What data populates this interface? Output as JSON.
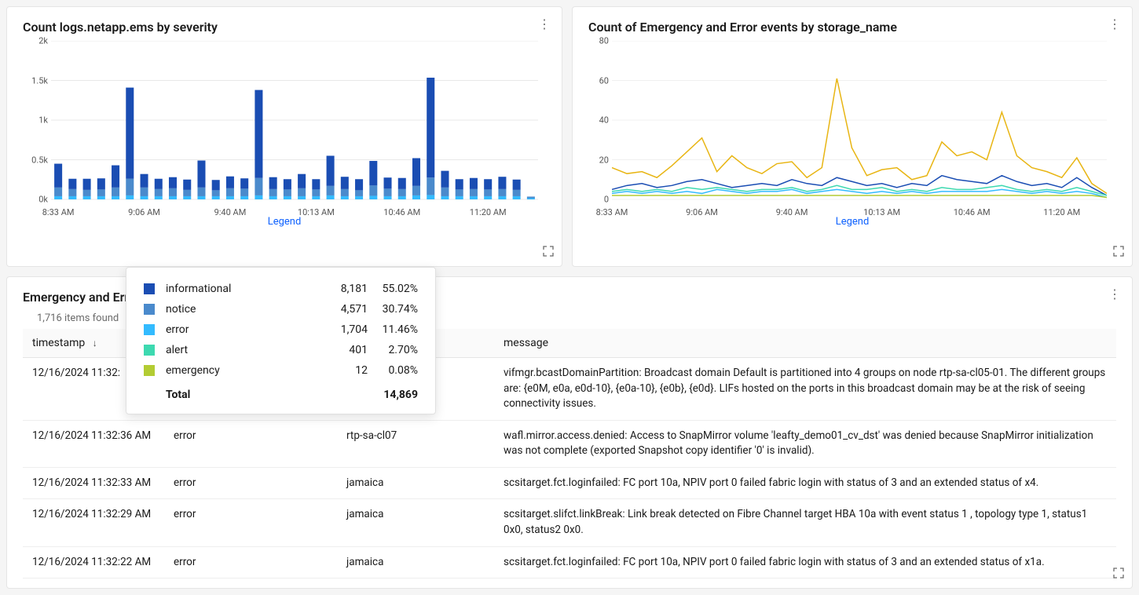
{
  "barPanel": {
    "title": "Count logs.netapp.ems by severity",
    "legendLabel": "Legend",
    "chart": {
      "type": "stacked-bar",
      "yMax": 2000,
      "yTicks": [
        {
          "v": 0,
          "label": "0k"
        },
        {
          "v": 500,
          "label": "0.5k"
        },
        {
          "v": 1000,
          "label": "1k"
        },
        {
          "v": 1500,
          "label": "1.5k"
        },
        {
          "v": 2000,
          "label": "2k"
        }
      ],
      "xTicks": [
        {
          "idx": 0,
          "label": "8:33 AM"
        },
        {
          "idx": 6,
          "label": "9:06 AM"
        },
        {
          "idx": 12,
          "label": "9:40 AM"
        },
        {
          "idx": 18,
          "label": "10:13 AM"
        },
        {
          "idx": 24,
          "label": "10:46 AM"
        },
        {
          "idx": 30,
          "label": "11:20 AM"
        }
      ],
      "colors": {
        "informational": "#1a4db3",
        "notice": "#4a8acc",
        "error": "#33bbff",
        "alert": "#3dd9b0",
        "emergency": "#b3cc33"
      },
      "background": "#ffffff",
      "gridColor": "#e8e8e8",
      "barWidthRatio": 0.55,
      "bars": [
        {
          "informational": 300,
          "notice": 110,
          "error": 40
        },
        {
          "informational": 130,
          "notice": 90,
          "error": 40
        },
        {
          "informational": 140,
          "notice": 80,
          "error": 40
        },
        {
          "informational": 140,
          "notice": 85,
          "error": 40
        },
        {
          "informational": 280,
          "notice": 110,
          "error": 40
        },
        {
          "informational": 1150,
          "notice": 210,
          "error": 50
        },
        {
          "informational": 170,
          "notice": 110,
          "error": 40
        },
        {
          "informational": 130,
          "notice": 90,
          "error": 40
        },
        {
          "informational": 140,
          "notice": 100,
          "error": 40
        },
        {
          "informational": 130,
          "notice": 80,
          "error": 40
        },
        {
          "informational": 340,
          "notice": 110,
          "error": 40
        },
        {
          "informational": 130,
          "notice": 75,
          "error": 40
        },
        {
          "informational": 150,
          "notice": 100,
          "error": 40
        },
        {
          "informational": 130,
          "notice": 95,
          "error": 40
        },
        {
          "informational": 1110,
          "notice": 220,
          "error": 50
        },
        {
          "informational": 150,
          "notice": 90,
          "error": 40
        },
        {
          "informational": 130,
          "notice": 85,
          "error": 40
        },
        {
          "informational": 180,
          "notice": 100,
          "error": 40
        },
        {
          "informational": 130,
          "notice": 85,
          "error": 40
        },
        {
          "informational": 380,
          "notice": 120,
          "error": 50
        },
        {
          "informational": 155,
          "notice": 90,
          "error": 40
        },
        {
          "informational": 140,
          "notice": 75,
          "error": 40
        },
        {
          "informational": 310,
          "notice": 130,
          "error": 45
        },
        {
          "informational": 140,
          "notice": 95,
          "error": 40
        },
        {
          "informational": 140,
          "notice": 90,
          "error": 40
        },
        {
          "informational": 350,
          "notice": 120,
          "error": 50
        },
        {
          "informational": 1260,
          "notice": 220,
          "error": 55
        },
        {
          "informational": 210,
          "notice": 110,
          "error": 40
        },
        {
          "informational": 130,
          "notice": 85,
          "error": 40
        },
        {
          "informational": 140,
          "notice": 90,
          "error": 40
        },
        {
          "informational": 130,
          "notice": 85,
          "error": 40
        },
        {
          "informational": 155,
          "notice": 90,
          "error": 40
        },
        {
          "informational": 130,
          "notice": 80,
          "error": 40
        },
        {
          "informational": 0,
          "notice": 20,
          "error": 15
        }
      ]
    },
    "legendPopover": {
      "rows": [
        {
          "color": "#1a4db3",
          "name": "informational",
          "count": "8,181",
          "pct": "55.02%"
        },
        {
          "color": "#4a8acc",
          "name": "notice",
          "count": "4,571",
          "pct": "30.74%"
        },
        {
          "color": "#33bbff",
          "name": "error",
          "count": "1,704",
          "pct": "11.46%"
        },
        {
          "color": "#3dd9b0",
          "name": "alert",
          "count": "401",
          "pct": "2.70%"
        },
        {
          "color": "#b3cc33",
          "name": "emergency",
          "count": "12",
          "pct": "0.08%"
        }
      ],
      "totalLabel": "Total",
      "totalValue": "14,869"
    }
  },
  "linePanel": {
    "title": "Count of Emergency and Error events by storage_name",
    "legendLabel": "Legend",
    "chart": {
      "type": "line",
      "yMax": 80,
      "yTicks": [
        {
          "v": 0,
          "label": "0"
        },
        {
          "v": 20,
          "label": "20"
        },
        {
          "v": 40,
          "label": "40"
        },
        {
          "v": 60,
          "label": "60"
        },
        {
          "v": 80,
          "label": "80"
        }
      ],
      "xTicks": [
        {
          "idx": 0,
          "label": "8:33 AM"
        },
        {
          "idx": 6,
          "label": "9:06 AM"
        },
        {
          "idx": 12,
          "label": "9:40 AM"
        },
        {
          "idx": 18,
          "label": "10:13 AM"
        },
        {
          "idx": 24,
          "label": "10:46 AM"
        },
        {
          "idx": 30,
          "label": "11:20 AM"
        }
      ],
      "background": "#ffffff",
      "gridColor": "#f0f0f0",
      "lineWidth": 1.5,
      "series": [
        {
          "color": "#e8b513",
          "values": [
            16,
            13,
            14,
            11,
            17,
            24,
            31,
            14,
            22,
            16,
            13,
            18,
            19,
            11,
            16,
            61,
            26,
            12,
            15,
            16,
            10,
            12,
            29,
            22,
            24,
            20,
            44,
            22,
            16,
            14,
            11,
            21,
            8,
            3
          ]
        },
        {
          "color": "#1a4db3",
          "values": [
            5,
            7,
            8,
            6,
            7,
            9,
            10,
            8,
            6,
            7,
            8,
            7,
            10,
            8,
            7,
            11,
            9,
            7,
            8,
            6,
            8,
            7,
            12,
            10,
            9,
            8,
            12,
            9,
            7,
            8,
            6,
            11,
            6,
            2
          ]
        },
        {
          "color": "#3dd9b0",
          "values": [
            4,
            5,
            4,
            5,
            4,
            6,
            5,
            6,
            5,
            4,
            5,
            5,
            6,
            4,
            5,
            7,
            5,
            5,
            6,
            4,
            5,
            4,
            6,
            5,
            5,
            6,
            7,
            5,
            4,
            5,
            4,
            6,
            4,
            2
          ]
        },
        {
          "color": "#33bbff",
          "values": [
            3,
            4,
            3,
            4,
            3,
            4,
            3,
            5,
            4,
            3,
            4,
            4,
            5,
            3,
            4,
            5,
            4,
            3,
            4,
            3,
            4,
            3,
            4,
            4,
            4,
            4,
            5,
            4,
            3,
            4,
            3,
            4,
            3,
            1
          ]
        },
        {
          "color": "#b3cc33",
          "values": [
            2,
            2,
            2,
            2,
            2,
            2,
            2,
            2,
            2,
            2,
            2,
            2,
            2,
            2,
            2,
            2,
            2,
            2,
            2,
            2,
            2,
            2,
            2,
            2,
            2,
            2,
            2,
            2,
            2,
            2,
            2,
            2,
            2,
            1
          ]
        }
      ]
    }
  },
  "tablePanel": {
    "title": "Emergency and Erro",
    "itemsFound": "1,716 items found",
    "columns": {
      "timestamp": "timestamp",
      "severity": "",
      "storage": "e",
      "message": "message"
    },
    "rows": [
      {
        "ts": "12/16/2024 11:32:",
        "sev": "",
        "store": "",
        "msg": "vifmgr.bcastDomainPartition: Broadcast domain Default is partitioned into 4 groups on node rtp-sa-cl05-01. The different groups are: {e0M, e0a, e0d-10}, {e0a-10}, {e0b}, {e0d}. LIFs hosted on the ports in this broadcast domain may be at the risk of seeing connectivity issues."
      },
      {
        "ts": "12/16/2024 11:32:36 AM",
        "sev": "error",
        "store": "rtp-sa-cl07",
        "msg": "wafl.mirror.access.denied: Access to SnapMirror volume 'leafty_demo01_cv_dst' was denied because SnapMirror initialization was not complete (exported Snapshot copy identifier '0' is invalid)."
      },
      {
        "ts": "12/16/2024 11:32:33 AM",
        "sev": "error",
        "store": "jamaica",
        "msg": "scsitarget.fct.loginfailed: FC port 10a, NPIV port 0 failed fabric login with status of 3 and an extended status of x4."
      },
      {
        "ts": "12/16/2024 11:32:29 AM",
        "sev": "error",
        "store": "jamaica",
        "msg": "scsitarget.slifct.linkBreak: Link break detected on Fibre Channel target HBA 10a with event status 1 , topology type 1, status1 0x0, status2 0x0."
      },
      {
        "ts": "12/16/2024 11:32:22 AM",
        "sev": "error",
        "store": "jamaica",
        "msg": "scsitarget.fct.loginfailed: FC port 10a, NPIV port 0 failed fabric login with status of 3 and an extended status of x1a."
      }
    ]
  }
}
